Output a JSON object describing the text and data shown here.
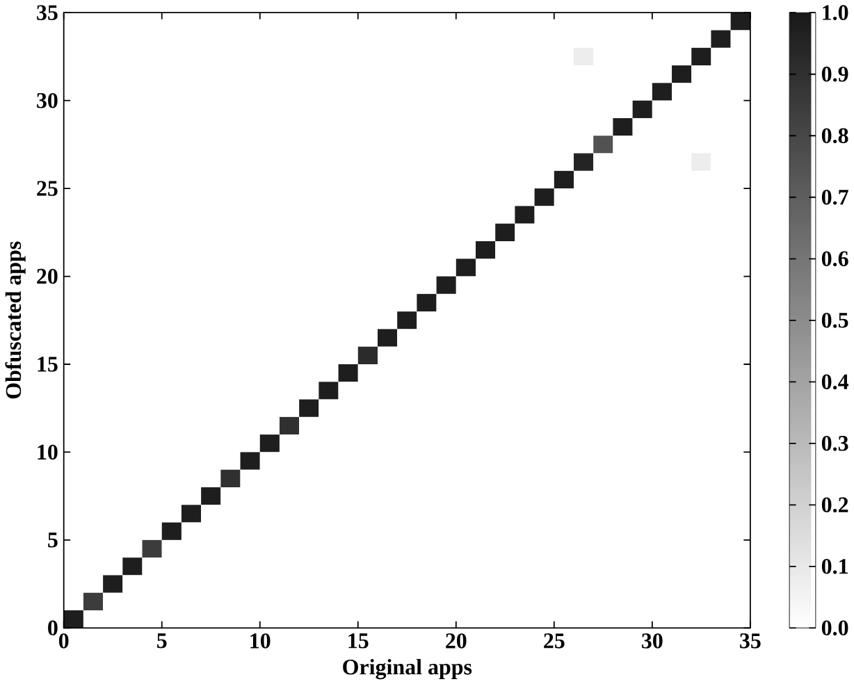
{
  "chart_data": {
    "type": "heatmap",
    "xlabel": "Original apps",
    "ylabel": "Obfuscated apps",
    "xlim": [
      0,
      35
    ],
    "xticks": [
      0,
      5,
      10,
      15,
      20,
      25,
      30,
      35
    ],
    "ylim": [
      0,
      35
    ],
    "yticks": [
      0,
      5,
      10,
      15,
      20,
      25,
      30,
      35
    ],
    "clim": [
      0,
      1
    ],
    "cticks": [
      {
        "value": 0,
        "label": "0.0"
      },
      0.1,
      0.2,
      0.3,
      0.4,
      0.5,
      0.6,
      0.7,
      0.8,
      0.9,
      {
        "value": 1,
        "label": "1.0"
      }
    ],
    "cells": [
      [
        0,
        0,
        0,
        0,
        0,
        0,
        0,
        0,
        0,
        0,
        0,
        0,
        0,
        0,
        0,
        0,
        0,
        0,
        0,
        0,
        0,
        0,
        0,
        0,
        0,
        0,
        0,
        0,
        0,
        0,
        0,
        0,
        0,
        0,
        0.98
      ],
      [
        0,
        0,
        0,
        0,
        0,
        0,
        0,
        0,
        0,
        0,
        0,
        0,
        0,
        0,
        0,
        0,
        0,
        0,
        0,
        0,
        0,
        0,
        0,
        0,
        0,
        0,
        0,
        0,
        0,
        0,
        0,
        0,
        0,
        0.98,
        0
      ],
      [
        0,
        0,
        0,
        0,
        0,
        0,
        0,
        0,
        0,
        0,
        0,
        0,
        0,
        0,
        0,
        0,
        0,
        0,
        0,
        0,
        0,
        0,
        0,
        0,
        0,
        0,
        0.08,
        0,
        0,
        0,
        0,
        0,
        0.98,
        0,
        0
      ],
      [
        0,
        0,
        0,
        0,
        0,
        0,
        0,
        0,
        0,
        0,
        0,
        0,
        0,
        0,
        0,
        0,
        0,
        0,
        0,
        0,
        0,
        0,
        0,
        0,
        0,
        0,
        0,
        0,
        0,
        0,
        0,
        0.98,
        0,
        0,
        0
      ],
      [
        0,
        0,
        0,
        0,
        0,
        0,
        0,
        0,
        0,
        0,
        0,
        0,
        0,
        0,
        0,
        0,
        0,
        0,
        0,
        0,
        0,
        0,
        0,
        0,
        0,
        0,
        0,
        0,
        0,
        0,
        0.98,
        0,
        0,
        0,
        0
      ],
      [
        0,
        0,
        0,
        0,
        0,
        0,
        0,
        0,
        0,
        0,
        0,
        0,
        0,
        0,
        0,
        0,
        0,
        0,
        0,
        0,
        0,
        0,
        0,
        0,
        0,
        0,
        0,
        0,
        0,
        0.98,
        0,
        0,
        0,
        0,
        0
      ],
      [
        0,
        0,
        0,
        0,
        0,
        0,
        0,
        0,
        0,
        0,
        0,
        0,
        0,
        0,
        0,
        0,
        0,
        0,
        0,
        0,
        0,
        0,
        0,
        0,
        0,
        0,
        0,
        0,
        0.98,
        0,
        0,
        0,
        0,
        0,
        0
      ],
      [
        0,
        0,
        0,
        0,
        0,
        0,
        0,
        0,
        0,
        0,
        0,
        0,
        0,
        0,
        0,
        0,
        0,
        0,
        0,
        0,
        0,
        0,
        0,
        0,
        0,
        0,
        0,
        0.75,
        0,
        0,
        0,
        0,
        0,
        0,
        0
      ],
      [
        0,
        0,
        0,
        0,
        0,
        0,
        0,
        0,
        0,
        0,
        0,
        0,
        0,
        0,
        0,
        0,
        0,
        0,
        0,
        0,
        0,
        0,
        0,
        0,
        0,
        0,
        0.95,
        0,
        0,
        0,
        0,
        0,
        0.08,
        0,
        0
      ],
      [
        0,
        0,
        0,
        0,
        0,
        0,
        0,
        0,
        0,
        0,
        0,
        0,
        0,
        0,
        0,
        0,
        0,
        0,
        0,
        0,
        0,
        0,
        0,
        0,
        0,
        0.98,
        0,
        0,
        0,
        0,
        0,
        0,
        0,
        0,
        0
      ],
      [
        0,
        0,
        0,
        0,
        0,
        0,
        0,
        0,
        0,
        0,
        0,
        0,
        0,
        0,
        0,
        0,
        0,
        0,
        0,
        0,
        0,
        0,
        0,
        0,
        0.98,
        0,
        0,
        0,
        0,
        0,
        0,
        0,
        0,
        0,
        0
      ],
      [
        0,
        0,
        0,
        0,
        0,
        0,
        0,
        0,
        0,
        0,
        0,
        0,
        0,
        0,
        0,
        0,
        0,
        0,
        0,
        0,
        0,
        0,
        0,
        0.98,
        0,
        0,
        0,
        0,
        0,
        0,
        0,
        0,
        0,
        0,
        0
      ],
      [
        0,
        0,
        0,
        0,
        0,
        0,
        0,
        0,
        0,
        0,
        0,
        0,
        0,
        0,
        0,
        0,
        0,
        0,
        0,
        0,
        0,
        0,
        0.98,
        0,
        0,
        0,
        0,
        0,
        0,
        0,
        0,
        0,
        0,
        0,
        0
      ],
      [
        0,
        0,
        0,
        0,
        0,
        0,
        0,
        0,
        0,
        0,
        0,
        0,
        0,
        0,
        0,
        0,
        0,
        0,
        0,
        0,
        0,
        0.98,
        0,
        0,
        0,
        0,
        0,
        0,
        0,
        0,
        0,
        0,
        0,
        0,
        0
      ],
      [
        0,
        0,
        0,
        0,
        0,
        0,
        0,
        0,
        0,
        0,
        0,
        0,
        0,
        0,
        0,
        0,
        0,
        0,
        0,
        0,
        0.98,
        0,
        0,
        0,
        0,
        0,
        0,
        0,
        0,
        0,
        0,
        0,
        0,
        0,
        0
      ],
      [
        0,
        0,
        0,
        0,
        0,
        0,
        0,
        0,
        0,
        0,
        0,
        0,
        0,
        0,
        0,
        0,
        0,
        0,
        0,
        0.98,
        0,
        0,
        0,
        0,
        0,
        0,
        0,
        0,
        0,
        0,
        0,
        0,
        0,
        0,
        0
      ],
      [
        0,
        0,
        0,
        0,
        0,
        0,
        0,
        0,
        0,
        0,
        0,
        0,
        0,
        0,
        0,
        0,
        0,
        0,
        0.98,
        0,
        0,
        0,
        0,
        0,
        0,
        0,
        0,
        0,
        0,
        0,
        0,
        0,
        0,
        0,
        0
      ],
      [
        0,
        0,
        0,
        0,
        0,
        0,
        0,
        0,
        0,
        0,
        0,
        0,
        0,
        0,
        0,
        0,
        0,
        0.98,
        0,
        0,
        0,
        0,
        0,
        0,
        0,
        0,
        0,
        0,
        0,
        0,
        0,
        0,
        0,
        0,
        0
      ],
      [
        0,
        0,
        0,
        0,
        0,
        0,
        0,
        0,
        0,
        0,
        0,
        0,
        0,
        0,
        0,
        0,
        0.98,
        0,
        0,
        0,
        0,
        0,
        0,
        0,
        0,
        0,
        0,
        0,
        0,
        0,
        0,
        0,
        0,
        0,
        0
      ],
      [
        0,
        0,
        0,
        0,
        0,
        0,
        0,
        0,
        0,
        0,
        0,
        0,
        0,
        0,
        0,
        0.92,
        0,
        0,
        0,
        0,
        0,
        0,
        0,
        0,
        0,
        0,
        0,
        0,
        0,
        0,
        0,
        0,
        0,
        0,
        0
      ],
      [
        0,
        0,
        0,
        0,
        0,
        0,
        0,
        0,
        0,
        0,
        0,
        0,
        0,
        0,
        0.98,
        0,
        0,
        0,
        0,
        0,
        0,
        0,
        0,
        0,
        0,
        0,
        0,
        0,
        0,
        0,
        0,
        0,
        0,
        0,
        0
      ],
      [
        0,
        0,
        0,
        0,
        0,
        0,
        0,
        0,
        0,
        0,
        0,
        0,
        0,
        0.98,
        0,
        0,
        0,
        0,
        0,
        0,
        0,
        0,
        0,
        0,
        0,
        0,
        0,
        0,
        0,
        0,
        0,
        0,
        0,
        0,
        0
      ],
      [
        0,
        0,
        0,
        0,
        0,
        0,
        0,
        0,
        0,
        0,
        0,
        0,
        0.98,
        0,
        0,
        0,
        0,
        0,
        0,
        0,
        0,
        0,
        0,
        0,
        0,
        0,
        0,
        0,
        0,
        0,
        0,
        0,
        0,
        0,
        0
      ],
      [
        0,
        0,
        0,
        0,
        0,
        0,
        0,
        0,
        0,
        0,
        0,
        0.9,
        0,
        0,
        0,
        0,
        0,
        0,
        0,
        0,
        0,
        0,
        0,
        0,
        0,
        0,
        0,
        0,
        0,
        0,
        0,
        0,
        0,
        0,
        0
      ],
      [
        0,
        0,
        0,
        0,
        0,
        0,
        0,
        0,
        0,
        0,
        0.98,
        0,
        0,
        0,
        0,
        0,
        0,
        0,
        0,
        0,
        0,
        0,
        0,
        0,
        0,
        0,
        0,
        0,
        0,
        0,
        0,
        0,
        0,
        0,
        0
      ],
      [
        0,
        0,
        0,
        0,
        0,
        0,
        0,
        0,
        0,
        0.98,
        0,
        0,
        0,
        0,
        0,
        0,
        0,
        0,
        0,
        0,
        0,
        0,
        0,
        0,
        0,
        0,
        0,
        0,
        0,
        0,
        0,
        0,
        0,
        0,
        0
      ],
      [
        0,
        0,
        0,
        0,
        0,
        0,
        0,
        0,
        0.9,
        0,
        0,
        0,
        0,
        0,
        0,
        0,
        0,
        0,
        0,
        0,
        0,
        0,
        0,
        0,
        0,
        0,
        0,
        0,
        0,
        0,
        0,
        0,
        0,
        0,
        0
      ],
      [
        0,
        0,
        0,
        0,
        0,
        0,
        0,
        0.98,
        0,
        0,
        0,
        0,
        0,
        0,
        0,
        0,
        0,
        0,
        0,
        0,
        0,
        0,
        0,
        0,
        0,
        0,
        0,
        0,
        0,
        0,
        0,
        0,
        0,
        0,
        0
      ],
      [
        0,
        0,
        0,
        0,
        0,
        0,
        0.98,
        0,
        0,
        0,
        0,
        0,
        0,
        0,
        0,
        0,
        0,
        0,
        0,
        0,
        0,
        0,
        0,
        0,
        0,
        0,
        0,
        0,
        0,
        0,
        0,
        0,
        0,
        0,
        0
      ],
      [
        0,
        0,
        0,
        0,
        0,
        0.98,
        0,
        0,
        0,
        0,
        0,
        0,
        0,
        0,
        0,
        0,
        0,
        0,
        0,
        0,
        0,
        0,
        0,
        0,
        0,
        0,
        0,
        0,
        0,
        0,
        0,
        0,
        0,
        0,
        0
      ],
      [
        0,
        0,
        0,
        0,
        0.85,
        0,
        0,
        0,
        0,
        0,
        0,
        0,
        0,
        0,
        0,
        0,
        0,
        0,
        0,
        0,
        0,
        0,
        0,
        0,
        0,
        0,
        0,
        0,
        0,
        0,
        0,
        0,
        0,
        0,
        0
      ],
      [
        0,
        0,
        0,
        0.98,
        0,
        0,
        0,
        0,
        0,
        0,
        0,
        0,
        0,
        0,
        0,
        0,
        0,
        0,
        0,
        0,
        0,
        0,
        0,
        0,
        0,
        0,
        0,
        0,
        0,
        0,
        0,
        0,
        0,
        0,
        0
      ],
      [
        0,
        0,
        0.98,
        0,
        0,
        0,
        0,
        0,
        0,
        0,
        0,
        0,
        0,
        0,
        0,
        0,
        0,
        0,
        0,
        0,
        0,
        0,
        0,
        0,
        0,
        0,
        0,
        0,
        0,
        0,
        0,
        0,
        0,
        0,
        0
      ],
      [
        0,
        0.85,
        0,
        0,
        0,
        0,
        0,
        0,
        0,
        0,
        0,
        0,
        0,
        0,
        0,
        0,
        0,
        0,
        0,
        0,
        0,
        0,
        0,
        0,
        0,
        0,
        0,
        0,
        0,
        0,
        0,
        0,
        0,
        0,
        0
      ],
      [
        0.98,
        0,
        0,
        0,
        0,
        0,
        0,
        0,
        0,
        0,
        0,
        0,
        0,
        0,
        0,
        0,
        0,
        0,
        0,
        0,
        0,
        0,
        0,
        0,
        0,
        0,
        0,
        0,
        0,
        0,
        0,
        0,
        0,
        0,
        0
      ]
    ]
  }
}
